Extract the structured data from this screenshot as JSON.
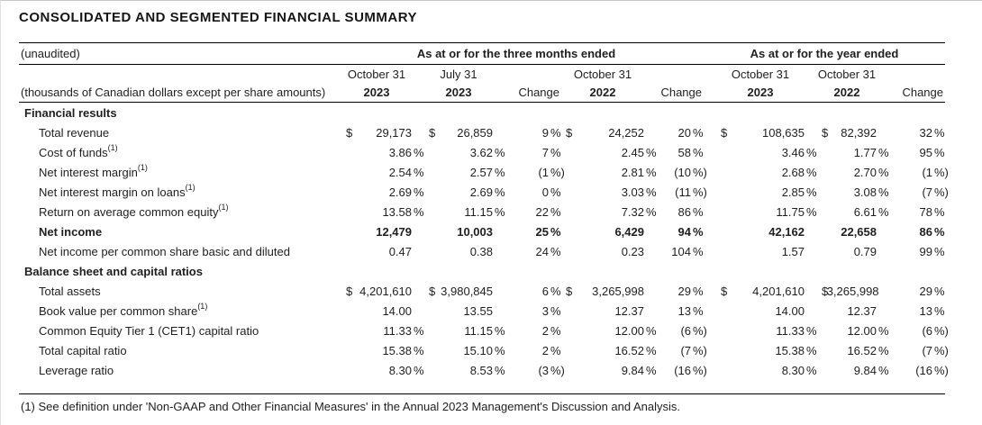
{
  "title": "CONSOLIDATED AND SEGMENTED FINANCIAL SUMMARY",
  "colors": {
    "text": "#1f1f1f",
    "rule": "#000000",
    "background": "#ffffff"
  },
  "table": {
    "unaudited_label": "(unaudited)",
    "units_label": "(thousands of Canadian dollars except per share amounts)",
    "group_headers": {
      "three_months": "As at or for the three months ended",
      "year": "As at or for the year ended"
    },
    "columns": [
      {
        "month": "October 31",
        "year": "2023"
      },
      {
        "month": "July 31",
        "year": "2023"
      },
      {
        "month": "",
        "year": "Change"
      },
      {
        "month": "October 31",
        "year": "2022"
      },
      {
        "month": "",
        "year": "Change"
      },
      {
        "month": "October 31",
        "year": "2023"
      },
      {
        "month": "October 31",
        "year": "2022"
      },
      {
        "month": "",
        "year": "Change"
      }
    ],
    "rows": [
      {
        "type": "section",
        "label": "Financial results"
      },
      {
        "type": "item",
        "label": "Total revenue",
        "values": [
          "$ 29,173",
          "$ 26,859",
          "9 %",
          "$ 24,252",
          "20 %",
          "$ 108,635",
          "$ 82,392",
          "32 %"
        ]
      },
      {
        "type": "item",
        "label": "Cost of funds",
        "sup": "(1)",
        "values": [
          "3.86 %",
          "3.62 %",
          "7 %",
          "2.45 %",
          "58 %",
          "3.46 %",
          "1.77 %",
          "95 %"
        ]
      },
      {
        "type": "item",
        "label": "Net interest margin",
        "sup": "(1)",
        "values": [
          "2.54 %",
          "2.57 %",
          "(1 %)",
          "2.81 %",
          "(10 %)",
          "2.68 %",
          "2.70 %",
          "(1 %)"
        ]
      },
      {
        "type": "item",
        "label": "Net interest margin on loans",
        "sup": "(1)",
        "values": [
          "2.69 %",
          "2.69 %",
          "0 %",
          "3.03 %",
          "(11 %)",
          "2.85 %",
          "3.08 %",
          "(7 %)"
        ]
      },
      {
        "type": "item",
        "label": "Return on average common equity",
        "sup": "(1)",
        "values": [
          "13.58 %",
          "11.15 %",
          "22 %",
          "7.32 %",
          "86 %",
          "11.75 %",
          "6.61 %",
          "78 %"
        ]
      },
      {
        "type": "item",
        "bold": true,
        "label": "Net income",
        "values": [
          "12,479",
          "10,003",
          "25 %",
          "6,429",
          "94 %",
          "42,162",
          "22,658",
          "86 %"
        ]
      },
      {
        "type": "item",
        "label": "Net income per common share basic and diluted",
        "values": [
          "0.47",
          "0.38",
          "24 %",
          "0.23",
          "104 %",
          "1.57",
          "0.79",
          "99 %"
        ]
      },
      {
        "type": "section",
        "label": "Balance sheet and capital ratios"
      },
      {
        "type": "item",
        "label": "Total assets",
        "values": [
          "$ 4,201,610",
          "$ 3,980,845",
          "6 %",
          "$ 3,265,998",
          "29 %",
          "$ 4,201,610",
          "$ 3,265,998",
          "29 %"
        ]
      },
      {
        "type": "item",
        "label": "Book value per common share",
        "sup": "(1)",
        "values": [
          "14.00",
          "13.55",
          "3 %",
          "12.37",
          "13 %",
          "14.00",
          "12.37",
          "13 %"
        ]
      },
      {
        "type": "item",
        "label": "Common Equity Tier 1 (CET1) capital ratio",
        "values": [
          "11.33 %",
          "11.15 %",
          "2 %",
          "12.00 %",
          "(6 %)",
          "11.33 %",
          "12.00 %",
          "(6 %)"
        ]
      },
      {
        "type": "item",
        "label": "Total capital ratio",
        "values": [
          "15.38 %",
          "15.10 %",
          "2 %",
          "16.52 %",
          "(7 %)",
          "15.38 %",
          "16.52 %",
          "(7 %)"
        ]
      },
      {
        "type": "item",
        "label": "Leverage ratio",
        "values": [
          "8.30 %",
          "8.53 %",
          "(3 %)",
          "9.84 %",
          "(16 %)",
          "8.30 %",
          "9.84 %",
          "(16 %)"
        ]
      }
    ]
  },
  "footnote": "(1) See definition under 'Non-GAAP and Other Financial Measures' in the Annual 2023 Management's Discussion and Analysis."
}
